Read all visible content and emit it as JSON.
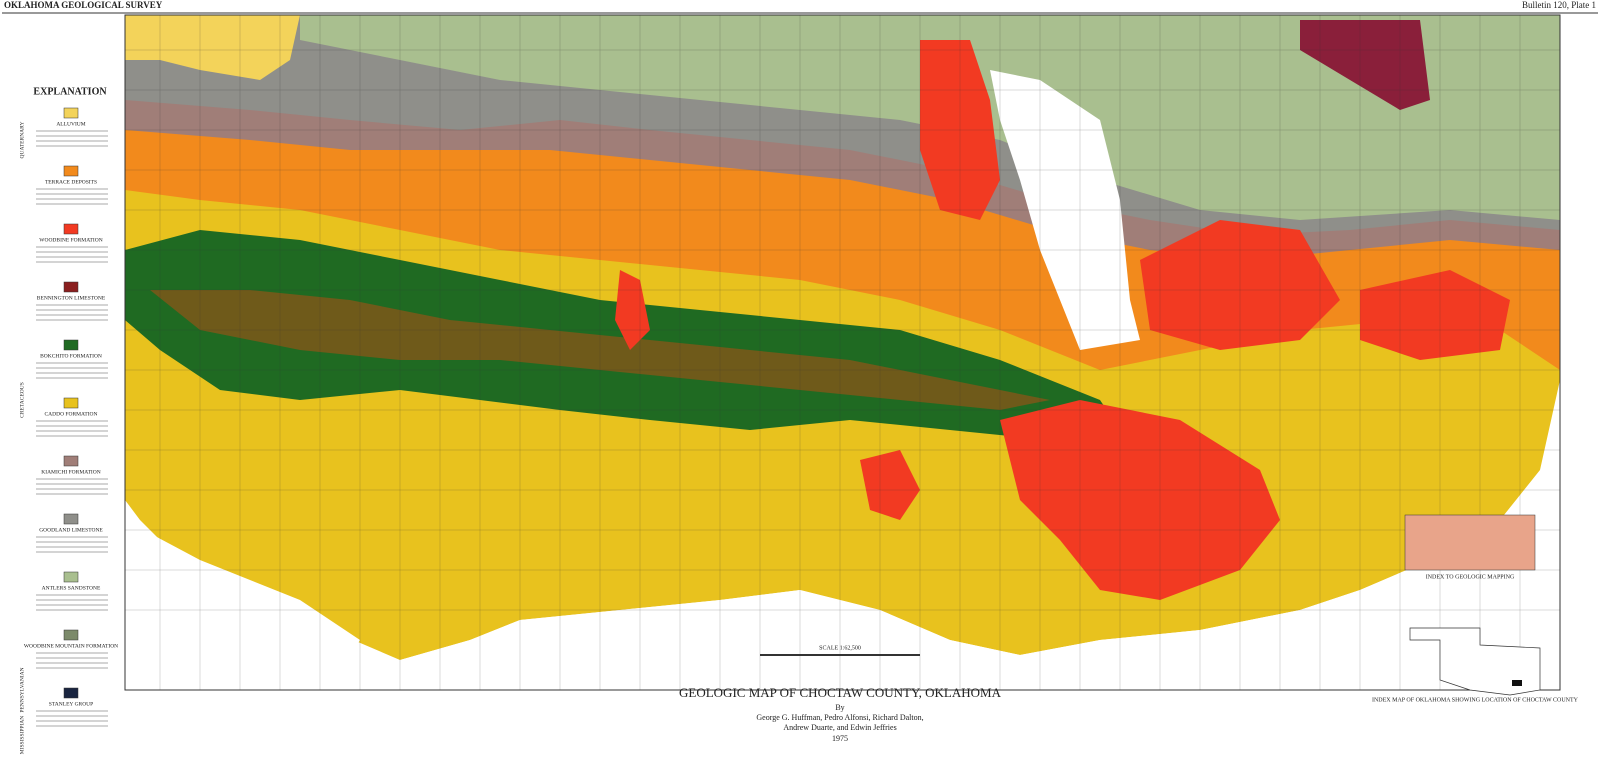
{
  "header": {
    "left": "OKLAHOMA GEOLOGICAL SURVEY",
    "right": "Bulletin 120, Plate 1"
  },
  "explanation": {
    "title": "EXPLANATION",
    "eras": [
      "QUATERNARY",
      "CRETACEOUS",
      "PENNSYLVANIAN",
      "MISSISSIPPIAN"
    ],
    "items": [
      {
        "name": "ALLUVIUM",
        "color": "#f3d35a"
      },
      {
        "name": "TERRACE DEPOSITS",
        "color": "#f28a1c"
      },
      {
        "name": "WOODBINE FORMATION",
        "color": "#f23a22"
      },
      {
        "name": "BENNINGTON LIMESTONE",
        "color": "#8a1f1f"
      },
      {
        "name": "BOKCHITO FORMATION",
        "color": "#1f6a22"
      },
      {
        "name": "CADDO FORMATION",
        "color": "#e8c21e"
      },
      {
        "name": "KIAMICHI FORMATION",
        "color": "#a07e78"
      },
      {
        "name": "GOODLAND LIMESTONE",
        "color": "#8f8f8a"
      },
      {
        "name": "ANTLERS SANDSTONE",
        "color": "#a9bf8f"
      },
      {
        "name": "WOODBINE MOUNTAIN FORMATION",
        "color": "#7c8a6a"
      },
      {
        "name": "STANLEY GROUP",
        "color": "#1a2540"
      }
    ]
  },
  "title": "GEOLOGIC MAP OF CHOCTAW COUNTY, OKLAHOMA",
  "by": "By",
  "authors": [
    "George G. Huffman, Pedro Alfonsi, Richard Dalton,",
    "Andrew Duarte, and Edwin Jeffries"
  ],
  "year": "1975",
  "scale": "SCALE 1:62,500",
  "index_mapping": "INDEX TO GEOLOGIC MAPPING",
  "index_map": "INDEX MAP OF OKLAHOMA SHOWING LOCATION OF CHOCTAW COUNTY"
}
